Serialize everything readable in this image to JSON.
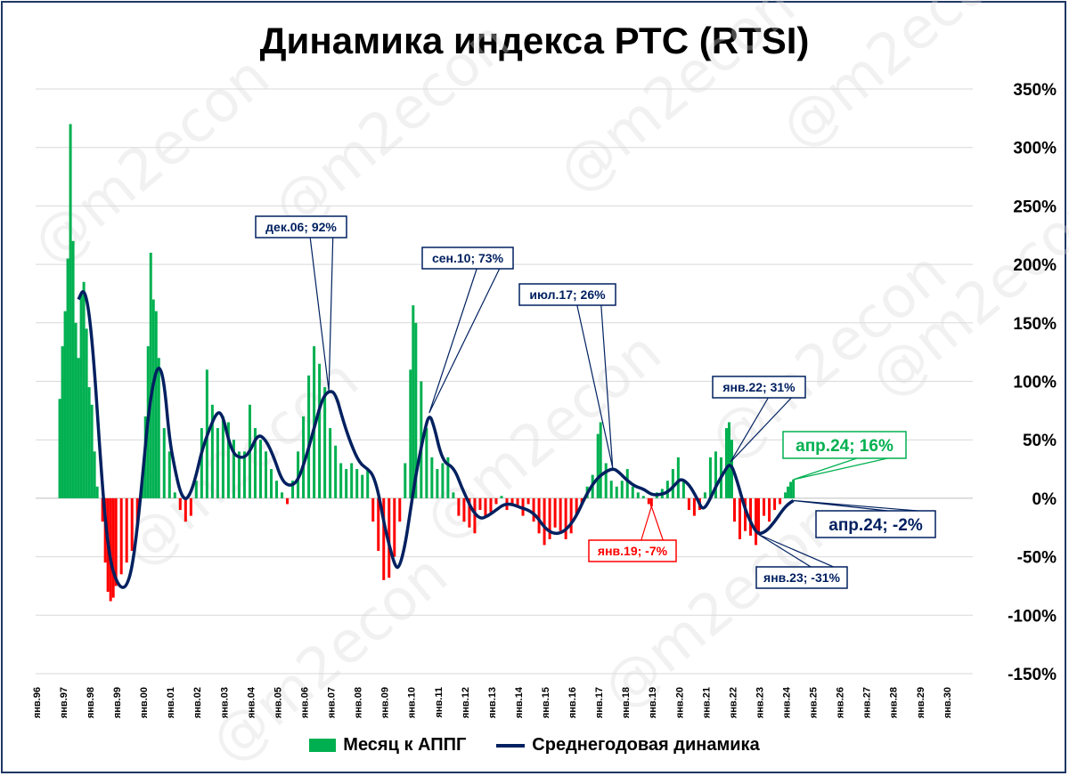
{
  "title": "Динамика индекса РТС (RTSI)",
  "watermark": "@m2econ",
  "legend": {
    "bars_label": "Месяц к АППГ",
    "line_label": "Среднегодовая динамика"
  },
  "colors": {
    "positive_bar": "#00b050",
    "negative_bar": "#ff0000",
    "line": "#002060",
    "grid": "#d9d9d9",
    "callout_green": "#00b050",
    "callout_red": "#ff0000",
    "callout_navy": "#002060"
  },
  "chart_data": {
    "type": "bar+line",
    "title": "Динамика индекса РТС (RTSI)",
    "ylim": [
      -150,
      350
    ],
    "y_ticks": [
      "350%",
      "300%",
      "250%",
      "200%",
      "150%",
      "100%",
      "50%",
      "0%",
      "-50%",
      "-100%",
      "-150%"
    ],
    "y_tick_values": [
      350,
      300,
      250,
      200,
      150,
      100,
      50,
      0,
      -50,
      -100,
      -150
    ],
    "x_ticks": [
      "янв.96",
      "янв.97",
      "янв.98",
      "янв.99",
      "янв.00",
      "янв.01",
      "янв.02",
      "янв.03",
      "янв.04",
      "янв.05",
      "янв.06",
      "янв.07",
      "янв.08",
      "янв.09",
      "янв.10",
      "янв.11",
      "янв.12",
      "янв.13",
      "янв.14",
      "янв.15",
      "янв.16",
      "янв.17",
      "янв.18",
      "янв.19",
      "янв.20",
      "янв.21",
      "янв.22",
      "янв.23",
      "янв.24",
      "янв.25",
      "янв.26",
      "янв.27",
      "янв.28",
      "янв.29",
      "янв.30"
    ],
    "x_start_year": 1996,
    "grid": "horizontal",
    "series": [
      {
        "name": "Месяц к АППГ",
        "type": "bar",
        "points": [
          [
            1996.9,
            85
          ],
          [
            1997.0,
            130
          ],
          [
            1997.1,
            160
          ],
          [
            1997.2,
            205
          ],
          [
            1997.3,
            320
          ],
          [
            1997.4,
            220
          ],
          [
            1997.5,
            150
          ],
          [
            1997.6,
            120
          ],
          [
            1997.7,
            175
          ],
          [
            1997.8,
            185
          ],
          [
            1997.9,
            145
          ],
          [
            1998.0,
            95
          ],
          [
            1998.1,
            80
          ],
          [
            1998.2,
            40
          ],
          [
            1998.3,
            10
          ],
          [
            1998.5,
            -20
          ],
          [
            1998.6,
            -55
          ],
          [
            1998.7,
            -80
          ],
          [
            1998.8,
            -88
          ],
          [
            1998.9,
            -85
          ],
          [
            1999.0,
            -75
          ],
          [
            1999.2,
            -65
          ],
          [
            1999.4,
            -55
          ],
          [
            1999.6,
            -45
          ],
          [
            1999.8,
            -25
          ],
          [
            2000.0,
            20
          ],
          [
            2000.1,
            70
          ],
          [
            2000.2,
            130
          ],
          [
            2000.3,
            210
          ],
          [
            2000.4,
            170
          ],
          [
            2000.5,
            160
          ],
          [
            2000.6,
            120
          ],
          [
            2000.8,
            60
          ],
          [
            2001.0,
            40
          ],
          [
            2001.2,
            5
          ],
          [
            2001.4,
            -10
          ],
          [
            2001.6,
            -20
          ],
          [
            2001.8,
            -15
          ],
          [
            2002.0,
            15
          ],
          [
            2002.2,
            60
          ],
          [
            2002.4,
            110
          ],
          [
            2002.6,
            80
          ],
          [
            2002.8,
            60
          ],
          [
            2003.0,
            70
          ],
          [
            2003.2,
            65
          ],
          [
            2003.4,
            50
          ],
          [
            2003.6,
            40
          ],
          [
            2003.8,
            40
          ],
          [
            2004.0,
            80
          ],
          [
            2004.2,
            60
          ],
          [
            2004.4,
            50
          ],
          [
            2004.6,
            40
          ],
          [
            2004.8,
            25
          ],
          [
            2005.0,
            15
          ],
          [
            2005.2,
            5
          ],
          [
            2005.4,
            -5
          ],
          [
            2005.6,
            15
          ],
          [
            2005.8,
            40
          ],
          [
            2006.0,
            70
          ],
          [
            2006.2,
            105
          ],
          [
            2006.4,
            130
          ],
          [
            2006.6,
            115
          ],
          [
            2006.8,
            95
          ],
          [
            2007.0,
            60
          ],
          [
            2007.2,
            45
          ],
          [
            2007.4,
            30
          ],
          [
            2007.6,
            25
          ],
          [
            2007.8,
            30
          ],
          [
            2008.0,
            25
          ],
          [
            2008.2,
            20
          ],
          [
            2008.4,
            25
          ],
          [
            2008.6,
            -20
          ],
          [
            2008.8,
            -45
          ],
          [
            2009.0,
            -70
          ],
          [
            2009.2,
            -68
          ],
          [
            2009.4,
            -50
          ],
          [
            2009.6,
            -20
          ],
          [
            2009.8,
            30
          ],
          [
            2010.0,
            110
          ],
          [
            2010.1,
            165
          ],
          [
            2010.2,
            150
          ],
          [
            2010.4,
            100
          ],
          [
            2010.6,
            60
          ],
          [
            2010.8,
            35
          ],
          [
            2011.0,
            25
          ],
          [
            2011.2,
            30
          ],
          [
            2011.4,
            35
          ],
          [
            2011.6,
            5
          ],
          [
            2011.8,
            -15
          ],
          [
            2012.0,
            -20
          ],
          [
            2012.2,
            -25
          ],
          [
            2012.4,
            -30
          ],
          [
            2012.6,
            -10
          ],
          [
            2012.8,
            -15
          ],
          [
            2013.0,
            -12
          ],
          [
            2013.2,
            -5
          ],
          [
            2013.4,
            2
          ],
          [
            2013.6,
            -10
          ],
          [
            2013.8,
            -5
          ],
          [
            2014.0,
            -8
          ],
          [
            2014.2,
            -15
          ],
          [
            2014.4,
            -5
          ],
          [
            2014.6,
            -20
          ],
          [
            2014.8,
            -30
          ],
          [
            2015.0,
            -40
          ],
          [
            2015.2,
            -35
          ],
          [
            2015.4,
            -25
          ],
          [
            2015.6,
            -28
          ],
          [
            2015.8,
            -35
          ],
          [
            2016.0,
            -30
          ],
          [
            2016.2,
            -15
          ],
          [
            2016.4,
            -5
          ],
          [
            2016.6,
            10
          ],
          [
            2016.8,
            20
          ],
          [
            2017.0,
            55
          ],
          [
            2017.1,
            65
          ],
          [
            2017.3,
            30
          ],
          [
            2017.5,
            15
          ],
          [
            2017.7,
            10
          ],
          [
            2017.9,
            15
          ],
          [
            2018.1,
            25
          ],
          [
            2018.3,
            10
          ],
          [
            2018.5,
            5
          ],
          [
            2018.7,
            2
          ],
          [
            2018.9,
            -5
          ],
          [
            2019.0,
            -7
          ],
          [
            2019.2,
            5
          ],
          [
            2019.4,
            8
          ],
          [
            2019.6,
            15
          ],
          [
            2019.8,
            25
          ],
          [
            2020.0,
            35
          ],
          [
            2020.2,
            15
          ],
          [
            2020.4,
            -10
          ],
          [
            2020.6,
            -15
          ],
          [
            2020.8,
            -10
          ],
          [
            2021.0,
            5
          ],
          [
            2021.2,
            35
          ],
          [
            2021.4,
            40
          ],
          [
            2021.6,
            35
          ],
          [
            2021.8,
            60
          ],
          [
            2021.9,
            65
          ],
          [
            2022.0,
            50
          ],
          [
            2022.1,
            -20
          ],
          [
            2022.3,
            -35
          ],
          [
            2022.5,
            -28
          ],
          [
            2022.7,
            -32
          ],
          [
            2022.9,
            -40
          ],
          [
            2023.0,
            -31
          ],
          [
            2023.2,
            -15
          ],
          [
            2023.4,
            -20
          ],
          [
            2023.6,
            -10
          ],
          [
            2023.8,
            -5
          ],
          [
            2024.0,
            5
          ],
          [
            2024.1,
            10
          ],
          [
            2024.2,
            14
          ],
          [
            2024.3,
            16
          ]
        ]
      },
      {
        "name": "Среднегодовая динамика",
        "type": "line",
        "points": [
          [
            1997.6,
            170
          ],
          [
            1997.8,
            180
          ],
          [
            1998.0,
            160
          ],
          [
            1998.2,
            110
          ],
          [
            1998.4,
            40
          ],
          [
            1998.6,
            -20
          ],
          [
            1998.8,
            -55
          ],
          [
            1999.0,
            -70
          ],
          [
            1999.2,
            -77
          ],
          [
            1999.4,
            -75
          ],
          [
            1999.6,
            -60
          ],
          [
            1999.8,
            -25
          ],
          [
            2000.0,
            20
          ],
          [
            2000.2,
            70
          ],
          [
            2000.4,
            100
          ],
          [
            2000.6,
            115
          ],
          [
            2000.8,
            100
          ],
          [
            2001.0,
            50
          ],
          [
            2001.2,
            25
          ],
          [
            2001.4,
            5
          ],
          [
            2001.6,
            -2
          ],
          [
            2001.8,
            5
          ],
          [
            2002.0,
            20
          ],
          [
            2002.2,
            40
          ],
          [
            2002.5,
            60
          ],
          [
            2002.8,
            75
          ],
          [
            2003.0,
            70
          ],
          [
            2003.2,
            50
          ],
          [
            2003.4,
            38
          ],
          [
            2003.6,
            35
          ],
          [
            2003.8,
            35
          ],
          [
            2004.0,
            40
          ],
          [
            2004.3,
            55
          ],
          [
            2004.6,
            50
          ],
          [
            2004.9,
            35
          ],
          [
            2005.2,
            15
          ],
          [
            2005.5,
            10
          ],
          [
            2005.8,
            15
          ],
          [
            2006.1,
            35
          ],
          [
            2006.4,
            60
          ],
          [
            2006.7,
            85
          ],
          [
            2006.95,
            92
          ],
          [
            2007.2,
            90
          ],
          [
            2007.5,
            65
          ],
          [
            2007.8,
            45
          ],
          [
            2008.1,
            30
          ],
          [
            2008.4,
            25
          ],
          [
            2008.6,
            20
          ],
          [
            2008.8,
            5
          ],
          [
            2009.0,
            -20
          ],
          [
            2009.2,
            -40
          ],
          [
            2009.45,
            -60
          ],
          [
            2009.6,
            -58
          ],
          [
            2009.8,
            -40
          ],
          [
            2010.0,
            -10
          ],
          [
            2010.2,
            20
          ],
          [
            2010.5,
            55
          ],
          [
            2010.7,
            73
          ],
          [
            2010.9,
            60
          ],
          [
            2011.1,
            40
          ],
          [
            2011.3,
            30
          ],
          [
            2011.5,
            28
          ],
          [
            2011.7,
            22
          ],
          [
            2011.9,
            10
          ],
          [
            2012.1,
            0
          ],
          [
            2012.3,
            -10
          ],
          [
            2012.6,
            -18
          ],
          [
            2012.9,
            -15
          ],
          [
            2013.2,
            -10
          ],
          [
            2013.5,
            -5
          ],
          [
            2013.8,
            -5
          ],
          [
            2014.1,
            -8
          ],
          [
            2014.4,
            -10
          ],
          [
            2014.7,
            -15
          ],
          [
            2015.0,
            -25
          ],
          [
            2015.3,
            -30
          ],
          [
            2015.6,
            -30
          ],
          [
            2015.9,
            -25
          ],
          [
            2016.2,
            -15
          ],
          [
            2016.5,
            0
          ],
          [
            2016.8,
            12
          ],
          [
            2017.1,
            20
          ],
          [
            2017.55,
            26
          ],
          [
            2017.8,
            22
          ],
          [
            2018.1,
            15
          ],
          [
            2018.4,
            10
          ],
          [
            2018.7,
            8
          ],
          [
            2019.0,
            3
          ],
          [
            2019.3,
            3
          ],
          [
            2019.6,
            5
          ],
          [
            2019.9,
            12
          ],
          [
            2020.1,
            17
          ],
          [
            2020.4,
            12
          ],
          [
            2020.7,
            0
          ],
          [
            2020.9,
            -10
          ],
          [
            2021.1,
            -5
          ],
          [
            2021.4,
            10
          ],
          [
            2021.7,
            22
          ],
          [
            2021.95,
            31
          ],
          [
            2022.2,
            15
          ],
          [
            2022.5,
            -10
          ],
          [
            2022.8,
            -25
          ],
          [
            2023.0,
            -31
          ],
          [
            2023.3,
            -28
          ],
          [
            2023.6,
            -20
          ],
          [
            2023.9,
            -10
          ],
          [
            2024.1,
            -5
          ],
          [
            2024.3,
            -2
          ]
        ]
      }
    ],
    "annotations": [
      {
        "label": "дек.06; 92%",
        "color": "navy",
        "x": 2006.95,
        "y": 92
      },
      {
        "label": "сен.10; 73%",
        "color": "navy",
        "x": 2010.7,
        "y": 73
      },
      {
        "label": "июл.17; 26%",
        "color": "navy",
        "x": 2017.55,
        "y": 26
      },
      {
        "label": "янв.22; 31%",
        "color": "navy",
        "x": 2021.95,
        "y": 31
      },
      {
        "label": "апр.24; 16%",
        "color": "green",
        "x": 2024.3,
        "y": 16
      },
      {
        "label": "апр.24; -2%",
        "color": "navy",
        "x": 2024.3,
        "y": -2
      },
      {
        "label": "янв.19; -7%",
        "color": "red",
        "x": 2019.0,
        "y": -7
      },
      {
        "label": "янв.23; -31%",
        "color": "navy",
        "x": 2023.0,
        "y": -31
      }
    ]
  }
}
